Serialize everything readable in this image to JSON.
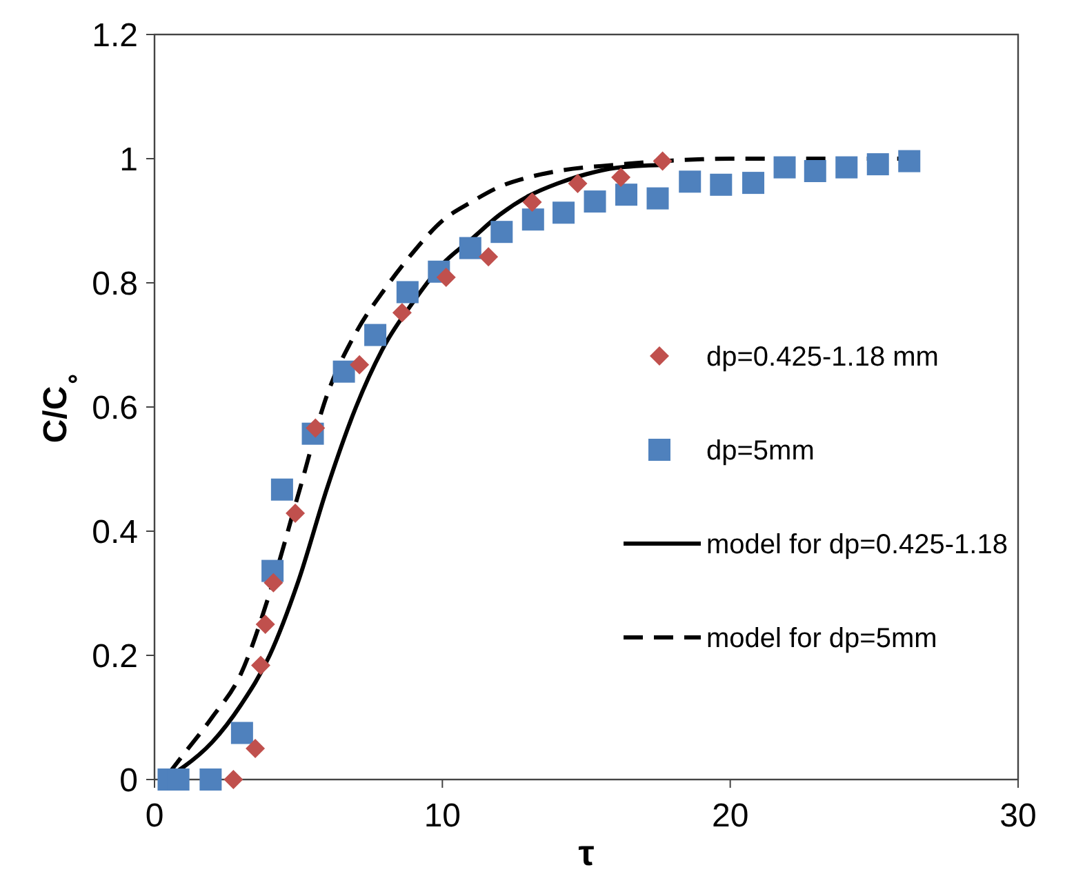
{
  "chart_data": {
    "type": "scatter",
    "xlabel": "τ",
    "ylabel": "C/C$_{∘}$",
    "xlim": [
      0,
      30
    ],
    "xticks": [
      0,
      10,
      20,
      30
    ],
    "ylim": [
      0,
      1.2
    ],
    "yticks": [
      0,
      0.2,
      0.4,
      0.6,
      0.8,
      1,
      1.2
    ],
    "grid": false,
    "legend": "right",
    "series": [
      {
        "name": "dp=0.425-1.18 mm",
        "marker": "diamond",
        "color": "#c0504d",
        "x": [
          2.74,
          3.5,
          3.69,
          3.85,
          4.13,
          4.89,
          5.59,
          7.12,
          8.6,
          10.13,
          11.6,
          13.12,
          14.7,
          16.2,
          17.65
        ],
        "values": [
          0,
          0.05,
          0.184,
          0.25,
          0.317,
          0.429,
          0.566,
          0.668,
          0.752,
          0.809,
          0.842,
          0.93,
          0.96,
          0.97,
          0.996
        ]
      },
      {
        "name": "dp=5mm",
        "marker": "square",
        "color": "#4f81bd",
        "x": [
          0.49,
          0.83,
          1.95,
          3.04,
          4.1,
          4.43,
          5.5,
          6.58,
          7.67,
          8.79,
          9.88,
          10.97,
          12.06,
          13.15,
          14.21,
          15.3,
          16.39,
          17.48,
          18.6,
          19.68,
          20.8,
          21.89,
          22.95,
          24.04,
          25.13,
          26.22
        ],
        "values": [
          0,
          0,
          0,
          0.075,
          0.336,
          0.467,
          0.557,
          0.657,
          0.716,
          0.785,
          0.818,
          0.856,
          0.882,
          0.902,
          0.913,
          0.931,
          0.942,
          0.936,
          0.963,
          0.958,
          0.961,
          0.986,
          0.98,
          0.986,
          0.991,
          0.996
        ]
      },
      {
        "name": "model for dp=0.425-1.18",
        "type": "line",
        "line_style": "solid",
        "color": "#000000",
        "x": [
          0.5,
          1,
          2,
          3,
          4,
          5,
          6,
          7,
          8,
          9,
          10,
          11,
          12,
          13,
          14,
          15,
          16,
          17.7
        ],
        "values": [
          0.005,
          0.02,
          0.06,
          0.12,
          0.2,
          0.32,
          0.47,
          0.6,
          0.7,
          0.77,
          0.83,
          0.87,
          0.91,
          0.94,
          0.96,
          0.975,
          0.985,
          0.99
        ]
      },
      {
        "name": "model for dp=5mm",
        "type": "line",
        "line_style": "dashed",
        "color": "#000000",
        "x": [
          0.5,
          1,
          2,
          3,
          4,
          5,
          6,
          7,
          8,
          9,
          10,
          11,
          12,
          13,
          14,
          16,
          18,
          20,
          26.2
        ],
        "values": [
          0.01,
          0.04,
          0.1,
          0.17,
          0.3,
          0.46,
          0.62,
          0.72,
          0.79,
          0.85,
          0.9,
          0.93,
          0.955,
          0.97,
          0.98,
          0.99,
          0.997,
          1,
          1
        ]
      }
    ]
  }
}
